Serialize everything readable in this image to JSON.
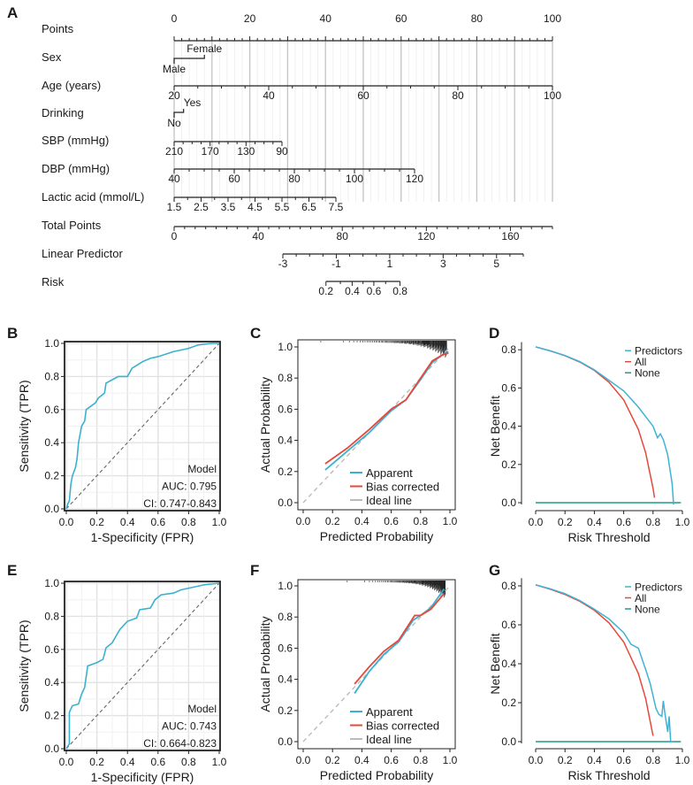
{
  "panel_letters": {
    "A": "A",
    "B": "B",
    "C": "C",
    "D": "D",
    "E": "E",
    "F": "F",
    "G": "G"
  },
  "nomogram": {
    "rows": [
      {
        "label": "Points",
        "range": [
          0,
          100
        ],
        "minor": 2,
        "major": 10,
        "labels": [
          0,
          20,
          40,
          60,
          80,
          100
        ]
      },
      {
        "label": "Sex",
        "categories": [
          {
            "name": "Male",
            "points": 0
          },
          {
            "name": "Female",
            "points": 8
          }
        ]
      },
      {
        "label": "Age (years)",
        "range": [
          20,
          100
        ],
        "minor": 5,
        "labels": [
          20,
          40,
          60,
          80,
          100
        ]
      },
      {
        "label": "Drinking",
        "categories": [
          {
            "name": "No",
            "points": 0
          },
          {
            "name": "Yes",
            "points": 2.5
          }
        ]
      },
      {
        "label": "SBP (mmHg)",
        "range": [
          210,
          90
        ],
        "minor": 10,
        "labels": [
          210,
          170,
          130,
          90
        ]
      },
      {
        "label": "DBP (mmHg)",
        "range": [
          40,
          120
        ],
        "minor": 5,
        "labels": [
          40,
          60,
          80,
          100,
          120
        ]
      },
      {
        "label": "Lactic acid (mmol/L)",
        "range": [
          1.5,
          7.5
        ],
        "minor": 0.5,
        "labels": [
          1.5,
          2.5,
          3.5,
          4.5,
          5.5,
          6.5,
          7.5
        ]
      },
      {
        "label": "Total Points",
        "range": [
          0,
          180
        ],
        "minor": 5,
        "labels": [
          0,
          40,
          80,
          120,
          160
        ]
      },
      {
        "label": "Linear Predictor",
        "range": [
          -3,
          6
        ],
        "minor": 0.5,
        "labels": [
          -3,
          -1,
          1,
          3,
          5
        ]
      },
      {
        "label": "Risk",
        "range": [
          0.2,
          0.8
        ],
        "minor": 0.1,
        "labels": [
          0.2,
          0.4,
          0.6,
          0.8
        ]
      }
    ]
  },
  "chart_data": [
    {
      "panel": "B",
      "type": "line",
      "subtype": "roc",
      "xlabel": "1-Specificity (FPR)",
      "ylabel": "Sensitivity (TPR)",
      "xlim": [
        0,
        1
      ],
      "ylim": [
        0,
        1
      ],
      "xticks": [
        0,
        0.2,
        0.4,
        0.6,
        0.8,
        1
      ],
      "yticks": [
        0,
        0.2,
        0.4,
        0.6,
        0.8,
        1
      ],
      "grid": true,
      "annotations": [
        "Model",
        "AUC: 0.795",
        "CI: 0.747-0.843"
      ],
      "color": "#3bb1d0",
      "x": [
        0,
        0.01,
        0.02,
        0.03,
        0.04,
        0.06,
        0.07,
        0.08,
        0.1,
        0.12,
        0.13,
        0.16,
        0.19,
        0.21,
        0.25,
        0.26,
        0.3,
        0.34,
        0.4,
        0.43,
        0.5,
        0.55,
        0.6,
        0.7,
        0.8,
        0.86,
        0.95,
        1
      ],
      "y": [
        0,
        0.03,
        0.05,
        0.15,
        0.2,
        0.25,
        0.3,
        0.4,
        0.5,
        0.53,
        0.6,
        0.62,
        0.64,
        0.67,
        0.7,
        0.76,
        0.78,
        0.8,
        0.8,
        0.85,
        0.89,
        0.91,
        0.92,
        0.95,
        0.97,
        0.99,
        1,
        1
      ]
    },
    {
      "panel": "C",
      "type": "line",
      "subtype": "calibration",
      "xlabel": "Predicted Probability",
      "ylabel": "Actual Probability",
      "xlim": [
        0,
        1
      ],
      "ylim": [
        0,
        1
      ],
      "xticks": [
        0,
        0.2,
        0.4,
        0.6,
        0.8,
        1
      ],
      "yticks": [
        0,
        0.2,
        0.4,
        0.6,
        0.8,
        1
      ],
      "legend": "bottom-right",
      "series": [
        {
          "name": "Apparent",
          "color": "#3bb1d0",
          "x": [
            0.15,
            0.3,
            0.45,
            0.6,
            0.7,
            0.8,
            0.88,
            0.95,
            0.99
          ],
          "y": [
            0.21,
            0.33,
            0.45,
            0.59,
            0.66,
            0.79,
            0.9,
            0.95,
            0.97
          ]
        },
        {
          "name": "Bias corrected",
          "color": "#e8483b",
          "x": [
            0.15,
            0.3,
            0.45,
            0.6,
            0.7,
            0.8,
            0.88,
            0.95,
            0.99
          ],
          "y": [
            0.25,
            0.35,
            0.47,
            0.6,
            0.66,
            0.8,
            0.91,
            0.95,
            0.96
          ]
        },
        {
          "name": "Ideal line",
          "color": "#bbbbbb",
          "x": [
            0,
            1
          ],
          "y": [
            0,
            1
          ]
        }
      ]
    },
    {
      "panel": "D",
      "type": "line",
      "subtype": "decision-curve",
      "xlabel": "Risk Threshold",
      "ylabel": "Net Benefit",
      "xlim": [
        0,
        1
      ],
      "ylim": [
        0,
        0.8
      ],
      "xticks": [
        0,
        0.2,
        0.4,
        0.6,
        0.8,
        1
      ],
      "yticks": [
        0,
        0.2,
        0.4,
        0.6,
        0.8
      ],
      "legend": "top-right",
      "series": [
        {
          "name": "Predictors",
          "color": "#3fb3d4",
          "x": [
            0,
            0.1,
            0.2,
            0.3,
            0.4,
            0.5,
            0.6,
            0.7,
            0.75,
            0.8,
            0.83,
            0.85,
            0.87,
            0.9,
            0.93,
            0.94
          ],
          "y": [
            0.815,
            0.794,
            0.77,
            0.738,
            0.695,
            0.64,
            0.585,
            0.5,
            0.45,
            0.4,
            0.34,
            0.36,
            0.33,
            0.25,
            0.1,
            -0.01
          ]
        },
        {
          "name": "All",
          "color": "#e8483b",
          "x": [
            0,
            0.1,
            0.2,
            0.3,
            0.4,
            0.5,
            0.6,
            0.7,
            0.75,
            0.8,
            0.81
          ],
          "y": [
            0.815,
            0.794,
            0.769,
            0.736,
            0.692,
            0.63,
            0.538,
            0.383,
            0.26,
            0.075,
            0.026
          ]
        },
        {
          "name": "None",
          "color": "#1a9c8c",
          "x": [
            0,
            0.99
          ],
          "y": [
            0,
            0
          ]
        }
      ]
    },
    {
      "panel": "E",
      "type": "line",
      "subtype": "roc",
      "xlabel": "1-Specificity (FPR)",
      "ylabel": "Sensitivity (TPR)",
      "xlim": [
        0,
        1
      ],
      "ylim": [
        0,
        1
      ],
      "xticks": [
        0,
        0.2,
        0.4,
        0.6,
        0.8,
        1
      ],
      "yticks": [
        0,
        0.2,
        0.4,
        0.6,
        0.8,
        1
      ],
      "grid": true,
      "annotations": [
        "Model",
        "AUC: 0.743",
        "CI: 0.664-0.823"
      ],
      "color": "#3bb1d0",
      "x": [
        0,
        0.02,
        0.02,
        0.04,
        0.08,
        0.1,
        0.12,
        0.14,
        0.2,
        0.24,
        0.26,
        0.3,
        0.35,
        0.4,
        0.46,
        0.48,
        0.55,
        0.58,
        0.62,
        0.7,
        0.75,
        0.8,
        0.9,
        1
      ],
      "y": [
        0,
        0.03,
        0.22,
        0.26,
        0.27,
        0.33,
        0.37,
        0.5,
        0.52,
        0.54,
        0.61,
        0.64,
        0.72,
        0.77,
        0.79,
        0.84,
        0.85,
        0.9,
        0.93,
        0.94,
        0.96,
        0.97,
        0.99,
        1
      ]
    },
    {
      "panel": "F",
      "type": "line",
      "subtype": "calibration",
      "xlabel": "Predicted Probability",
      "ylabel": "Actual Probability",
      "xlim": [
        0,
        1
      ],
      "ylim": [
        0,
        1
      ],
      "xticks": [
        0,
        0.2,
        0.4,
        0.6,
        0.8,
        1
      ],
      "yticks": [
        0,
        0.2,
        0.4,
        0.6,
        0.8,
        1
      ],
      "legend": "bottom-right",
      "series": [
        {
          "name": "Apparent",
          "color": "#3bb1d0",
          "x": [
            0.35,
            0.45,
            0.55,
            0.65,
            0.75,
            0.8,
            0.87,
            0.96
          ],
          "y": [
            0.31,
            0.45,
            0.56,
            0.64,
            0.78,
            0.81,
            0.86,
            0.98
          ]
        },
        {
          "name": "Bias corrected",
          "color": "#e8483b",
          "x": [
            0.35,
            0.45,
            0.55,
            0.65,
            0.76,
            0.8,
            0.87,
            0.96
          ],
          "y": [
            0.37,
            0.48,
            0.58,
            0.65,
            0.81,
            0.81,
            0.85,
            0.95
          ]
        },
        {
          "name": "Ideal line",
          "color": "#bbbbbb",
          "x": [
            0,
            1
          ],
          "y": [
            0,
            1
          ]
        }
      ]
    },
    {
      "panel": "G",
      "type": "line",
      "subtype": "decision-curve",
      "xlabel": "Risk Threshold",
      "ylabel": "Net Benefit",
      "xlim": [
        0,
        1
      ],
      "ylim": [
        0,
        0.8
      ],
      "xticks": [
        0,
        0.2,
        0.4,
        0.6,
        0.8,
        1
      ],
      "yticks": [
        0,
        0.2,
        0.4,
        0.6,
        0.8
      ],
      "legend": "top-right",
      "series": [
        {
          "name": "Predictors",
          "color": "#3fb3d4",
          "x": [
            0,
            0.1,
            0.2,
            0.3,
            0.4,
            0.5,
            0.6,
            0.65,
            0.7,
            0.75,
            0.78,
            0.82,
            0.84,
            0.86,
            0.87,
            0.88,
            0.9,
            0.91,
            0.92,
            0.94
          ],
          "y": [
            0.805,
            0.785,
            0.76,
            0.725,
            0.68,
            0.63,
            0.56,
            0.5,
            0.48,
            0.37,
            0.3,
            0.17,
            0.14,
            0.13,
            0.21,
            0.15,
            0.05,
            0.13,
            0,
            0
          ]
        },
        {
          "name": "All",
          "color": "#e8483b",
          "x": [
            0,
            0.1,
            0.2,
            0.3,
            0.4,
            0.5,
            0.6,
            0.7,
            0.75,
            0.8
          ],
          "y": [
            0.805,
            0.783,
            0.756,
            0.721,
            0.675,
            0.61,
            0.512,
            0.35,
            0.22,
            0.03
          ]
        },
        {
          "name": "None",
          "color": "#1a9c8c",
          "x": [
            0,
            0.99
          ],
          "y": [
            0,
            0
          ]
        }
      ]
    }
  ]
}
